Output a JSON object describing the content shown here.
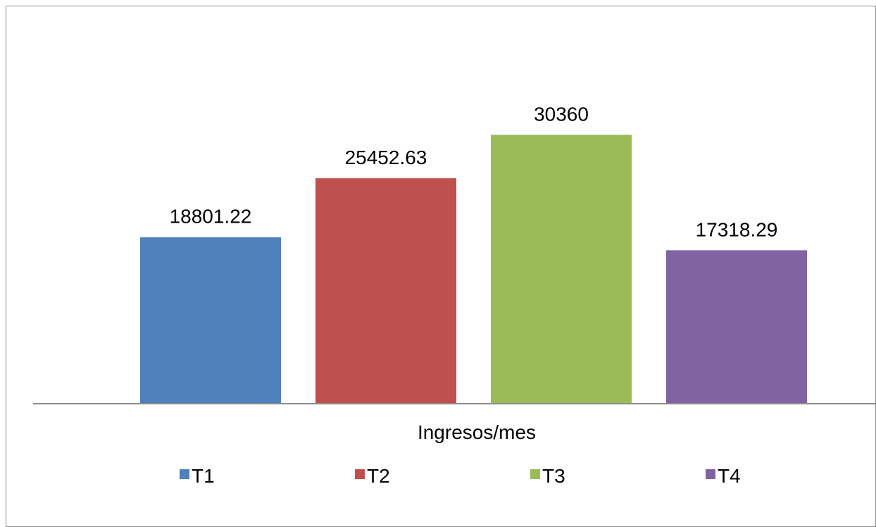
{
  "chart_data": {
    "type": "bar",
    "title": "",
    "xlabel": "Ingresos/mes",
    "ylabel": "",
    "categories": [
      "Ingresos/mes"
    ],
    "series": [
      {
        "name": "T1",
        "values": [
          18801.22
        ],
        "color": "#4f81bd"
      },
      {
        "name": "T2",
        "values": [
          25452.63
        ],
        "color": "#c0504d"
      },
      {
        "name": "T3",
        "values": [
          30360
        ],
        "color": "#9bbb59"
      },
      {
        "name": "T4",
        "values": [
          17318.29
        ],
        "color": "#8064a2"
      }
    ],
    "data_labels": [
      "18801.22",
      "25452.63",
      "30360",
      "17318.29"
    ],
    "ylim": [
      0,
      35000
    ],
    "grid": false,
    "legend_position": "bottom"
  }
}
